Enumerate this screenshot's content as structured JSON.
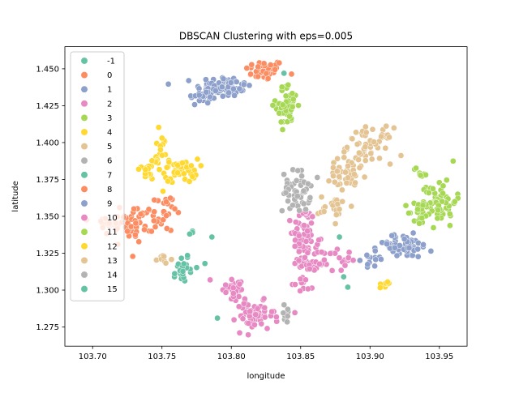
{
  "chart_data": {
    "type": "scatter",
    "title": "DBSCAN Clustering with eps=0.005",
    "xlabel": "longitude",
    "ylabel": "latitude",
    "xlim": [
      103.68,
      103.97
    ],
    "ylim": [
      1.262,
      1.465
    ],
    "x_ticks": [
      103.7,
      103.75,
      103.8,
      103.85,
      103.9,
      103.95
    ],
    "x_tick_labels": [
      "103.70",
      "103.75",
      "103.80",
      "103.85",
      "103.90",
      "103.95"
    ],
    "y_ticks": [
      1.275,
      1.3,
      1.325,
      1.35,
      1.375,
      1.4,
      1.425,
      1.45
    ],
    "y_tick_labels": [
      "1.275",
      "1.300",
      "1.325",
      "1.350",
      "1.375",
      "1.400",
      "1.425",
      "1.450"
    ],
    "grid": false,
    "legend_position": "upper-left",
    "palette": [
      "#66c2a5",
      "#fc8d62",
      "#8da0cb",
      "#e78ac3",
      "#a6d854",
      "#ffd92f",
      "#e5c494",
      "#b3b3b3"
    ],
    "series": [
      {
        "name": "-1",
        "color": "#66c2a5",
        "clusters": [],
        "points": [
          [
            103.838,
            1.447
          ],
          [
            103.772,
            1.34
          ],
          [
            103.786,
            1.336
          ],
          [
            103.781,
            1.318
          ],
          [
            103.79,
            1.281
          ],
          [
            103.759,
            1.309
          ],
          [
            103.878,
            1.336
          ],
          [
            103.881,
            1.309
          ],
          [
            103.884,
            1.302
          ]
        ]
      },
      {
        "name": "0",
        "color": "#fc8d62",
        "clusters": [
          {
            "cx": 103.824,
            "cy": 1.449,
            "sx": 0.007,
            "sy": 0.0035,
            "n": 45
          }
        ],
        "points": []
      },
      {
        "name": "1",
        "color": "#8da0cb",
        "clusters": [
          {
            "cx": 103.795,
            "cy": 1.438,
            "sx": 0.01,
            "sy": 0.0035,
            "n": 70
          },
          {
            "cx": 103.78,
            "cy": 1.431,
            "sx": 0.006,
            "sy": 0.003,
            "n": 25
          }
        ],
        "points": []
      },
      {
        "name": "2",
        "color": "#e78ac3",
        "clusters": [
          {
            "cx": 103.852,
            "cy": 1.335,
            "sx": 0.004,
            "sy": 0.012,
            "n": 70
          },
          {
            "cx": 103.86,
            "cy": 1.32,
            "sx": 0.005,
            "sy": 0.006,
            "n": 25
          },
          {
            "cx": 103.876,
            "cy": 1.321,
            "sx": 0.005,
            "sy": 0.004,
            "n": 20
          },
          {
            "cx": 103.851,
            "cy": 1.305,
            "sx": 0.004,
            "sy": 0.004,
            "n": 12
          }
        ],
        "points": []
      },
      {
        "name": "3",
        "color": "#a6d854",
        "clusters": [
          {
            "cx": 103.84,
            "cy": 1.425,
            "sx": 0.004,
            "sy": 0.007,
            "n": 60
          }
        ],
        "points": []
      },
      {
        "name": "4",
        "color": "#ffd92f",
        "clusters": [
          {
            "cx": 103.764,
            "cy": 1.381,
            "sx": 0.006,
            "sy": 0.004,
            "n": 40
          },
          {
            "cx": 103.748,
            "cy": 1.39,
            "sx": 0.003,
            "sy": 0.008,
            "n": 22
          },
          {
            "cx": 103.738,
            "cy": 1.38,
            "sx": 0.004,
            "sy": 0.003,
            "n": 15
          }
        ],
        "points": []
      },
      {
        "name": "5",
        "color": "#e5c494",
        "clusters": [
          {
            "cx": 103.9,
            "cy": 1.398,
            "sx": 0.008,
            "sy": 0.006,
            "n": 60
          },
          {
            "cx": 103.882,
            "cy": 1.378,
            "sx": 0.008,
            "sy": 0.006,
            "n": 40
          },
          {
            "cx": 103.875,
            "cy": 1.356,
            "sx": 0.006,
            "sy": 0.004,
            "n": 22
          }
        ],
        "points": []
      },
      {
        "name": "6",
        "color": "#b3b3b3",
        "clusters": [
          {
            "cx": 103.847,
            "cy": 1.367,
            "sx": 0.005,
            "sy": 0.007,
            "n": 55
          }
        ],
        "points": []
      },
      {
        "name": "7",
        "color": "#66c2a5",
        "clusters": [
          {
            "cx": 103.766,
            "cy": 1.316,
            "sx": 0.003,
            "sy": 0.005,
            "n": 22
          }
        ],
        "points": []
      },
      {
        "name": "8",
        "color": "#fc8d62",
        "clusters": [
          {
            "cx": 103.732,
            "cy": 1.346,
            "sx": 0.006,
            "sy": 0.006,
            "n": 45
          },
          {
            "cx": 103.752,
            "cy": 1.352,
            "sx": 0.004,
            "sy": 0.006,
            "n": 25
          },
          {
            "cx": 103.71,
            "cy": 1.343,
            "sx": 0.006,
            "sy": 0.004,
            "n": 22
          }
        ],
        "points": []
      },
      {
        "name": "9",
        "color": "#8da0cb",
        "clusters": [
          {
            "cx": 103.923,
            "cy": 1.33,
            "sx": 0.011,
            "sy": 0.004,
            "n": 60
          },
          {
            "cx": 103.902,
            "cy": 1.322,
            "sx": 0.004,
            "sy": 0.004,
            "n": 15
          }
        ],
        "points": []
      },
      {
        "name": "10",
        "color": "#e78ac3",
        "clusters": [
          {
            "cx": 103.817,
            "cy": 1.282,
            "sx": 0.007,
            "sy": 0.005,
            "n": 55
          },
          {
            "cx": 103.8,
            "cy": 1.302,
            "sx": 0.006,
            "sy": 0.005,
            "n": 30
          }
        ],
        "points": []
      },
      {
        "name": "11",
        "color": "#a6d854",
        "clusters": [
          {
            "cx": 103.95,
            "cy": 1.36,
            "sx": 0.006,
            "sy": 0.008,
            "n": 60
          },
          {
            "cx": 103.935,
            "cy": 1.352,
            "sx": 0.004,
            "sy": 0.004,
            "n": 22
          },
          {
            "cx": 103.937,
            "cy": 1.38,
            "sx": 0.003,
            "sy": 0.003,
            "n": 8
          }
        ],
        "points": []
      },
      {
        "name": "12",
        "color": "#ffd92f",
        "clusters": [
          {
            "cx": 103.911,
            "cy": 1.304,
            "sx": 0.002,
            "sy": 0.0015,
            "n": 10
          }
        ],
        "points": []
      },
      {
        "name": "13",
        "color": "#e5c494",
        "clusters": [
          {
            "cx": 103.75,
            "cy": 1.321,
            "sx": 0.003,
            "sy": 0.0015,
            "n": 10
          }
        ],
        "points": []
      },
      {
        "name": "14",
        "color": "#b3b3b3",
        "clusters": [
          {
            "cx": 103.839,
            "cy": 1.283,
            "sx": 0.002,
            "sy": 0.004,
            "n": 8
          }
        ],
        "points": []
      },
      {
        "name": "15",
        "color": "#66c2a5",
        "clusters": [],
        "points": [
          [
            103.772,
            1.339
          ],
          [
            103.77,
            1.338
          ]
        ]
      }
    ]
  }
}
